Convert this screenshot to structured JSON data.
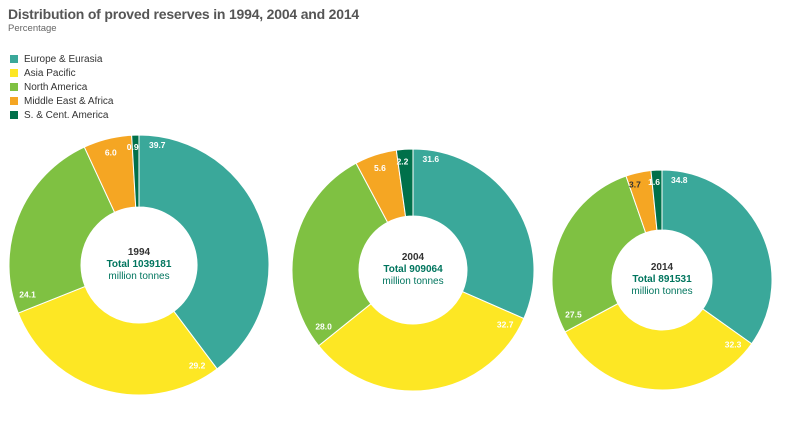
{
  "chart_data": {
    "type": "pie",
    "title": "Distribution of proved reserves in 1994, 2004 and 2014",
    "subtitle": "Percentage",
    "legend": {
      "position": "top-left",
      "entries": [
        {
          "name": "Europe & Eurasia",
          "color": "#3aa89a"
        },
        {
          "name": "Asia Pacific",
          "color": "#fde724"
        },
        {
          "name": "North America",
          "color": "#7fc142"
        },
        {
          "name": "Middle East & Africa",
          "color": "#f5a623"
        },
        {
          "name": "S. & Cent. America",
          "color": "#00704a"
        }
      ]
    },
    "charts": [
      {
        "year": "1994",
        "total_label": "Total 1039181",
        "unit": "million tonnes",
        "slices": [
          {
            "category": "Europe & Eurasia",
            "value": 39.7,
            "label": "39.7"
          },
          {
            "category": "Asia Pacific",
            "value": 29.2,
            "label": "29.2"
          },
          {
            "category": "North America",
            "value": 24.1,
            "label": "24.1"
          },
          {
            "category": "Middle East & Africa",
            "value": 6.0,
            "label": "6.0"
          },
          {
            "category": "S. & Cent. America",
            "value": 0.9,
            "label": "0.9"
          }
        ]
      },
      {
        "year": "2004",
        "total_label": "Total 909064",
        "unit": "million tonnes",
        "slices": [
          {
            "category": "Europe & Eurasia",
            "value": 31.6,
            "label": "31.6"
          },
          {
            "category": "Asia Pacific",
            "value": 32.7,
            "label": "32.7"
          },
          {
            "category": "North America",
            "value": 28.0,
            "label": "28.0"
          },
          {
            "category": "Middle East & Africa",
            "value": 5.6,
            "label": "5.6"
          },
          {
            "category": "S. & Cent. America",
            "value": 2.2,
            "label": "2.2"
          }
        ]
      },
      {
        "year": "2014",
        "total_label": "Total 891531",
        "unit": "million tonnes",
        "slices": [
          {
            "category": "Europe & Eurasia",
            "value": 34.8,
            "label": "34.8"
          },
          {
            "category": "Asia Pacific",
            "value": 32.3,
            "label": "32.3"
          },
          {
            "category": "North America",
            "value": 27.5,
            "label": "27.5"
          },
          {
            "category": "Middle East & Africa",
            "value": 3.7,
            "label": "3.7"
          },
          {
            "category": "S. & Cent. America",
            "value": 1.6,
            "label": "1.6"
          }
        ]
      }
    ]
  }
}
